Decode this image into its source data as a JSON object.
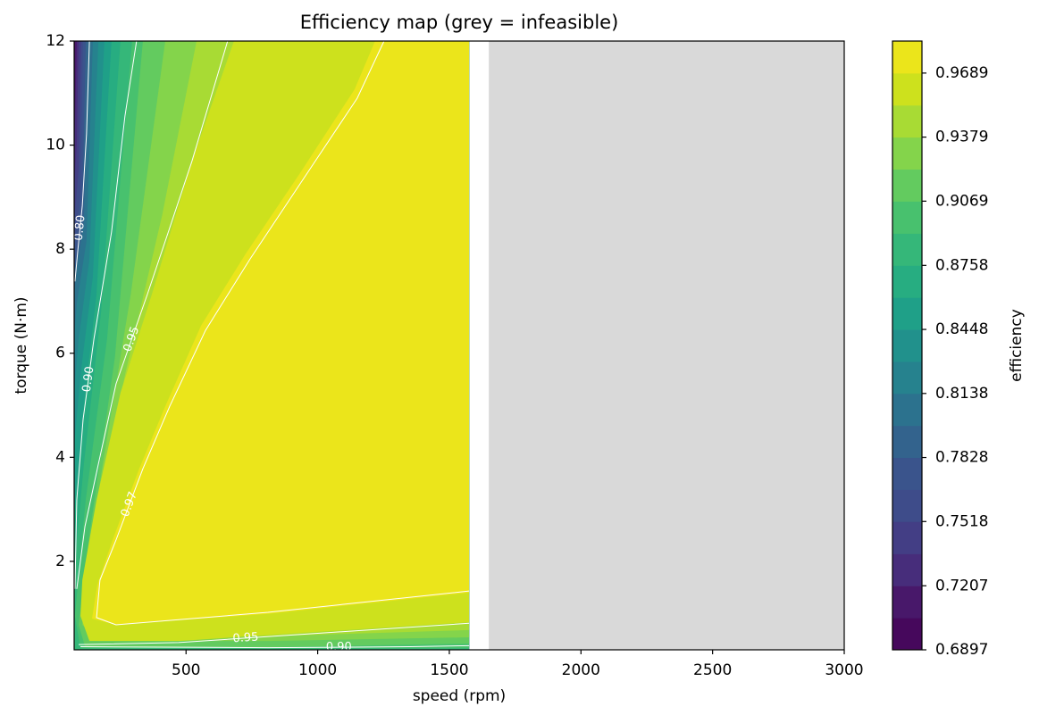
{
  "chart_data": {
    "type": "contourf",
    "title": "Efficiency map (grey = infeasible)",
    "xlabel": "speed (rpm)",
    "ylabel": "torque (N·m)",
    "xlim": [
      75,
      3000
    ],
    "ylim": [
      0.3,
      12
    ],
    "xticks": [
      500,
      1000,
      1500,
      2000,
      2500,
      3000
    ],
    "yticks": [
      2,
      4,
      6,
      8,
      10,
      12
    ],
    "feasible_xmax": 1575,
    "infeasible": {
      "x": [
        1650,
        3000
      ],
      "color": "#d9d9d9"
    },
    "levels": [
      0.6897,
      0.7052,
      0.7207,
      0.7362,
      0.7518,
      0.7673,
      0.7828,
      0.7983,
      0.8138,
      0.8293,
      0.8448,
      0.8603,
      0.8758,
      0.8913,
      0.9069,
      0.9224,
      0.9379,
      0.9534,
      0.9689,
      0.9844
    ],
    "colors": [
      "#46085c",
      "#48186a",
      "#472d7b",
      "#433e85",
      "#3e4c8a",
      "#3a548c",
      "#33638d",
      "#2c728e",
      "#26828e",
      "#21918c",
      "#1fa088",
      "#27ad81",
      "#35b779",
      "#48c16e",
      "#63cb5f",
      "#84d44b",
      "#a8db34",
      "#cde11d",
      "#ebe51b"
    ],
    "regions": [
      {
        "level": 0.7052,
        "x": [
          78,
          75
        ],
        "y": [
          12,
          11.0
        ]
      },
      {
        "level": 0.7207,
        "x": [
          85,
          80,
          75
        ],
        "y": [
          12,
          10.73,
          9.87
        ]
      },
      {
        "level": 0.7362,
        "x": [
          92,
          85,
          75
        ],
        "y": [
          12,
          10.04,
          9.1
        ]
      },
      {
        "level": 0.7518,
        "x": [
          102,
          92,
          75
        ],
        "y": [
          12,
          9.53,
          8.5
        ]
      },
      {
        "level": 0.7673,
        "x": [
          109,
          99,
          75
        ],
        "y": [
          12,
          9.1,
          7.98
        ]
      },
      {
        "level": 0.7828,
        "x": [
          119,
          106,
          75
        ],
        "y": [
          12,
          8.67,
          7.56
        ]
      },
      {
        "level": 0.7983,
        "x": [
          129,
          112,
          85,
          75
        ],
        "y": [
          12,
          8.5,
          7.64,
          7.13
        ]
      },
      {
        "level": 0.8138,
        "x": [
          146,
          122,
          85,
          75
        ],
        "y": [
          12,
          8.16,
          6.96,
          6.27
        ]
      },
      {
        "level": 0.8293,
        "x": [
          167,
          133,
          92,
          75
        ],
        "y": [
          12,
          7.81,
          6.27,
          5.24
        ]
      },
      {
        "level": 0.8448,
        "x": [
          190,
          146,
          99,
          75
        ],
        "y": [
          12,
          7.47,
          5.58,
          4.21
        ]
      },
      {
        "level": 0.8603,
        "x": [
          217,
          160,
          106,
          75
        ],
        "y": [
          12,
          7.13,
          4.73,
          2.84
        ]
      },
      {
        "level": 0.8758,
        "x": [
          251,
          177,
          112,
          75
        ],
        "y": [
          12,
          6.78,
          3.87,
          1.81
        ]
      },
      {
        "level": 0.8913,
        "x": [
          295,
          200,
          119,
          78,
          99,
          1575
        ],
        "y": [
          12,
          6.27,
          3.18,
          0.95,
          0.33,
          0.33
        ]
      },
      {
        "level": 0.9069,
        "x": [
          336,
          230,
          133,
          92,
          116,
          811,
          1575
        ],
        "y": [
          12,
          5.93,
          2.5,
          0.78,
          0.37,
          0.35,
          0.42
        ]
      },
      {
        "level": 0.9224,
        "x": [
          421,
          290,
          184,
          116,
          106,
          167,
          811,
          1575
        ],
        "y": [
          12,
          7.13,
          3.87,
          1.64,
          0.78,
          0.47,
          0.47,
          0.54
        ]
      },
      {
        "level": 0.9379,
        "x": [
          540,
          410,
          268,
          160,
          116,
          133,
          811,
          1575
        ],
        "y": [
          12,
          8.67,
          5.58,
          2.84,
          1.12,
          0.61,
          0.56,
          0.68
        ]
      },
      {
        "level": 0.9534,
        "x": [
          682,
          523,
          370,
          251,
          160,
          106,
          99,
          133,
          472,
          981,
          1575
        ],
        "y": [
          12,
          9.7,
          7.13,
          5.24,
          3.18,
          1.64,
          0.95,
          0.47,
          0.47,
          0.64,
          0.83
        ]
      },
      {
        "level": 0.9689,
        "x": [
          1218,
          1140,
          930,
          725,
          557,
          421,
          322,
          221,
          163,
          143,
          234,
          811,
          1575
        ],
        "y": [
          12,
          11.07,
          9.44,
          7.9,
          6.53,
          4.98,
          3.78,
          2.41,
          1.55,
          0.9,
          0.78,
          0.99,
          1.4
        ]
      }
    ],
    "contour_lines": [
      {
        "level": 0.8,
        "label": "0.80",
        "x": [
          133,
          122,
          106,
          89,
          78
        ],
        "y": [
          12,
          10.21,
          8.84,
          7.98,
          7.38
        ]
      },
      {
        "level": 0.9,
        "label": "0.90",
        "x": [
          312,
          268,
          217,
          150,
          109,
          85,
          78
        ],
        "y": [
          12,
          10.56,
          8.33,
          6.27,
          4.73,
          3.18,
          1.47
        ]
      },
      {
        "level": 0.9,
        "label": "0.90",
        "x": [
          99,
          811,
          1350,
          1575
        ],
        "y": [
          0.36,
          0.34,
          0.36,
          0.38
        ]
      },
      {
        "level": 0.95,
        "label": "0.95",
        "x": [
          658,
          523,
          438,
          353,
          234,
          167,
          116,
          85
        ],
        "y": [
          12,
          9.7,
          8.41,
          7.13,
          5.41,
          3.87,
          2.67,
          1.47
        ]
      },
      {
        "level": 0.95,
        "label": "0.95",
        "x": [
          92,
          472,
          981,
          1575
        ],
        "y": [
          0.4,
          0.44,
          0.61,
          0.81
        ]
      },
      {
        "level": 0.97,
        "label": "0.97",
        "x": [
          1252,
          1150,
          947,
          743,
          574,
          438,
          336,
          234,
          173,
          160,
          234,
          811,
          1575
        ],
        "y": [
          12,
          10.9,
          9.36,
          7.81,
          6.44,
          4.98,
          3.78,
          2.41,
          1.64,
          0.92,
          0.78,
          1.02,
          1.43
        ]
      }
    ],
    "colorbar": {
      "label": "efficiency",
      "ylim": [
        0.6897,
        0.9844
      ],
      "ticks": [
        0.6897,
        0.7207,
        0.7518,
        0.7828,
        0.8138,
        0.8448,
        0.8758,
        0.9069,
        0.9379,
        0.9689
      ]
    }
  }
}
